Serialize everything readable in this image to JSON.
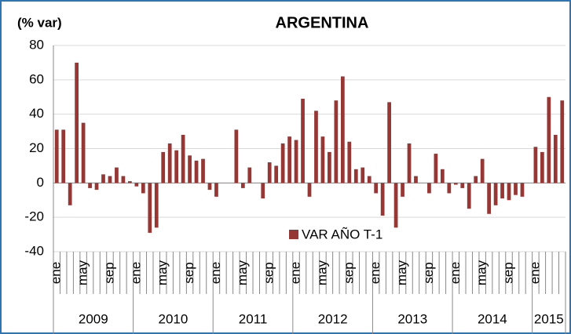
{
  "chart_data": {
    "type": "bar",
    "title": "ARGENTINA",
    "y_label": "(% var)",
    "categories": [
      "ene",
      null,
      null,
      null,
      "may",
      null,
      null,
      null,
      "sep",
      null,
      null,
      null,
      "ene",
      null,
      null,
      null,
      "may",
      null,
      null,
      null,
      "sep",
      null,
      null,
      null,
      "ene",
      null,
      null,
      null,
      "may",
      null,
      null,
      null,
      "sep",
      null,
      null,
      null,
      "ene",
      null,
      null,
      null,
      "may",
      null,
      null,
      null,
      "sep",
      null,
      null,
      null,
      "ene",
      null,
      null,
      null,
      "may",
      null,
      null,
      null,
      "sep",
      null,
      null,
      null,
      "ene",
      null,
      null,
      null,
      "may",
      null,
      null,
      null,
      "sep",
      null,
      null,
      null,
      "ene",
      null,
      null,
      null,
      null
    ],
    "x_groups": [
      "2009",
      "2010",
      "2011",
      "2012",
      "2013",
      "2014",
      "2015"
    ],
    "series": [
      {
        "name": "VAR AÑO T-1",
        "color": "#953735",
        "values": [
          31,
          31,
          -13,
          70,
          35,
          -3,
          -4,
          5,
          4,
          9,
          4,
          1,
          -2,
          -6,
          -29,
          -26,
          18,
          23,
          19,
          28,
          16,
          13,
          14,
          -4,
          -8,
          0,
          0,
          31,
          -3,
          9,
          0,
          -9,
          12,
          10,
          23,
          27,
          25,
          49,
          -8,
          42,
          27,
          18,
          48,
          62,
          24,
          8,
          9,
          4,
          -6,
          -19,
          47,
          -26,
          -8,
          23,
          4,
          0,
          -6,
          17,
          8,
          -6,
          -1,
          -3,
          -15,
          4,
          14,
          -18,
          -13,
          -9,
          -10,
          -7,
          -8,
          0,
          21,
          18,
          50,
          28,
          48
        ]
      }
    ],
    "ylim": [
      -40,
      80
    ],
    "yticks": [
      -40,
      -20,
      0,
      20,
      40,
      60,
      80
    ],
    "grid": true
  }
}
